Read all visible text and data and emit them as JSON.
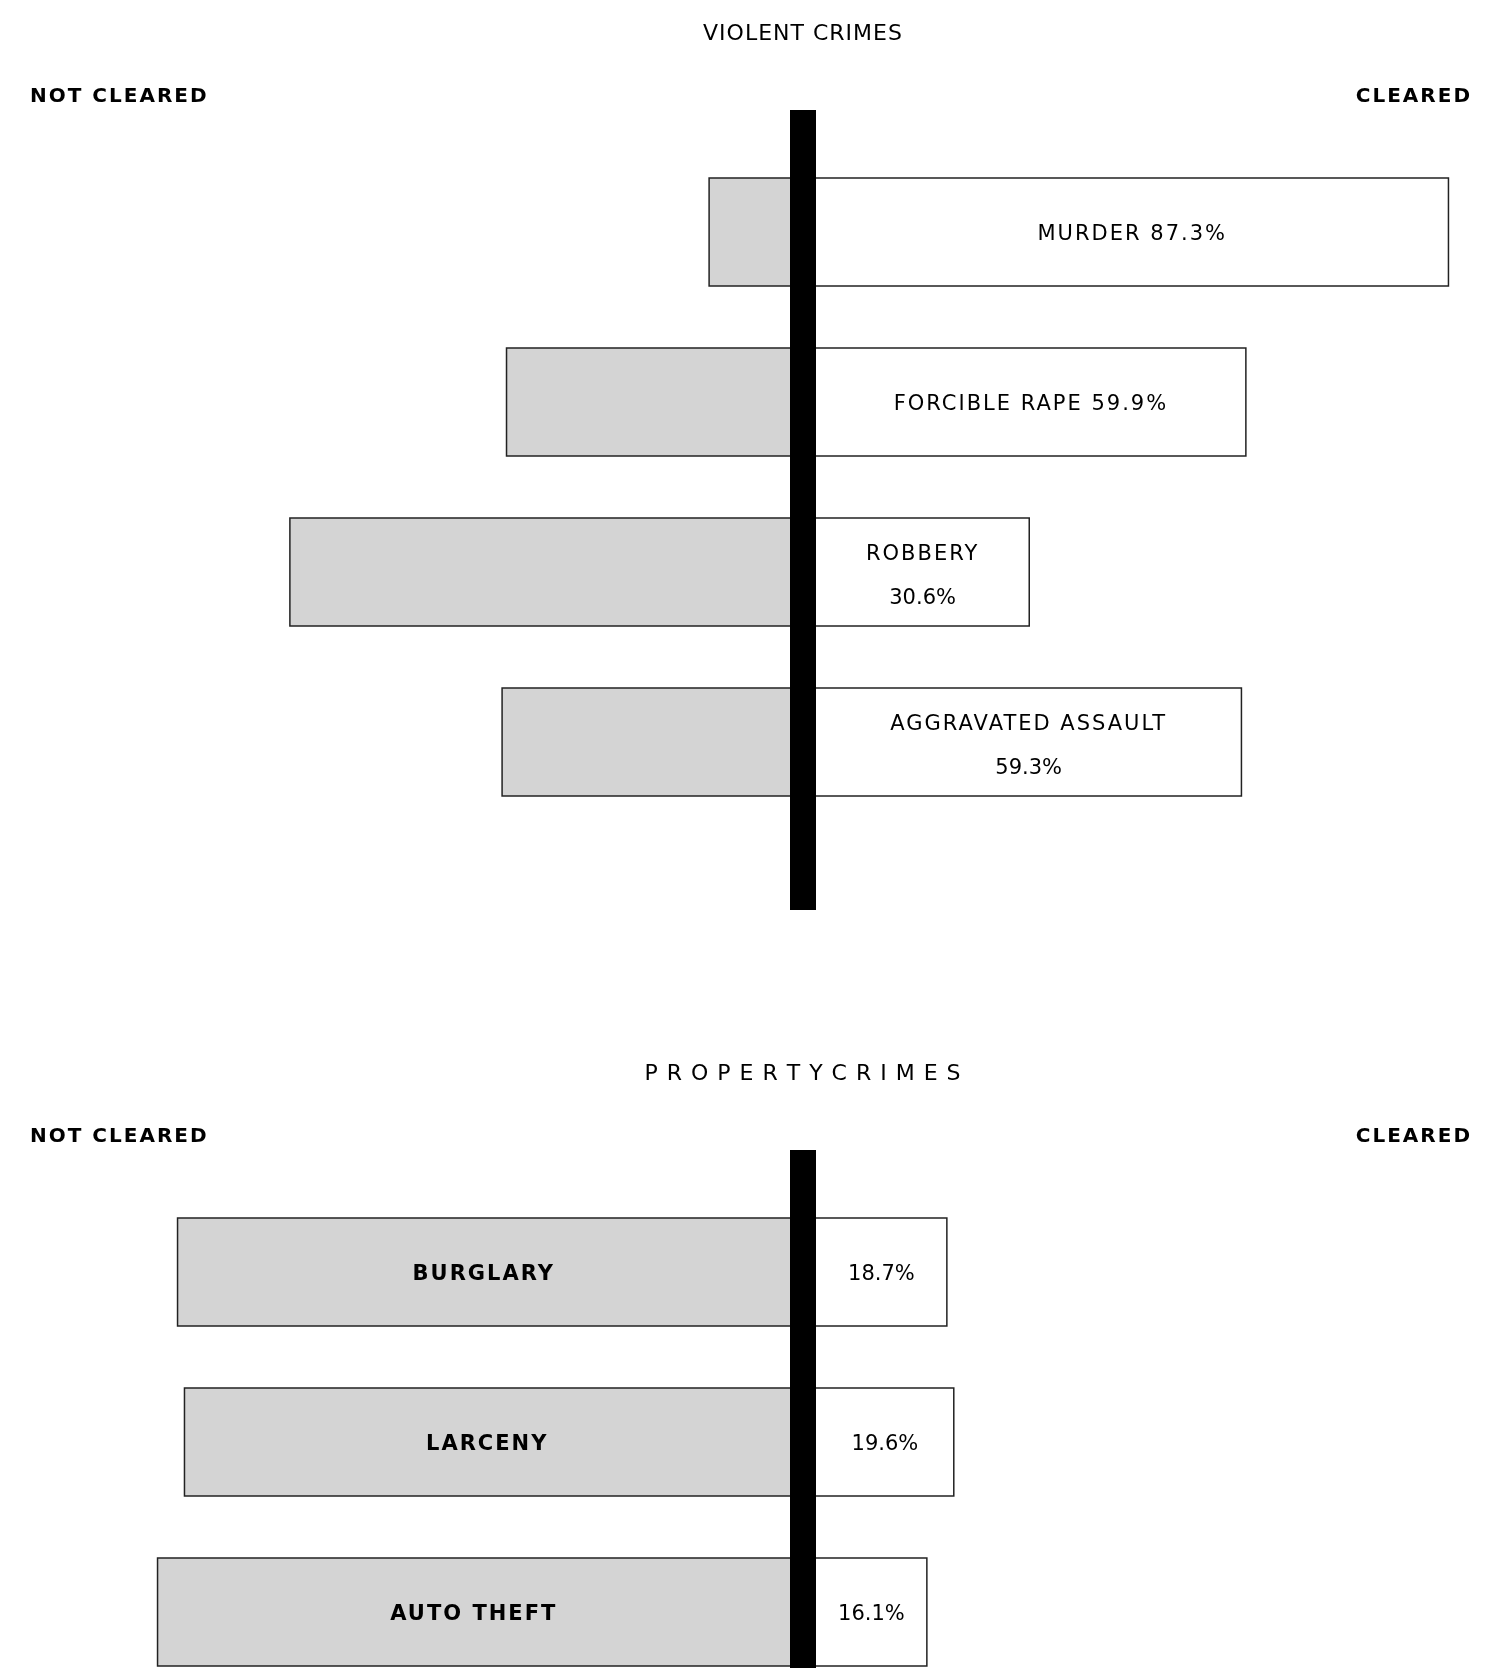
{
  "chart_data": [
    {
      "type": "bar",
      "title": "VIOLENT CRIMES",
      "orientation": "horizontal",
      "stacked": true,
      "annotations": [
        "NOT CLEARED",
        "CLEARED"
      ],
      "ref_lines": [
        {
          "axis": "x",
          "value": 0,
          "color": "#000000"
        }
      ],
      "categories": [
        "MURDER",
        "FORCIBLE RAPE",
        "ROBBERY",
        "AGGRAVATED ASSAULT"
      ],
      "series": [
        {
          "color": "#d4d4d4",
          "values": [
            -12.7,
            -40.1,
            -69.4,
            -40.7
          ]
        },
        {
          "color": "#ffffff",
          "values": [
            87.3,
            59.9,
            30.6,
            59.3
          ],
          "value_labels": [
            "87.3%",
            "59.9%",
            "30.6%",
            "59.3%"
          ]
        }
      ]
    },
    {
      "type": "bar",
      "title": "P R O P E R T Y   C R I M E S",
      "orientation": "horizontal",
      "stacked": true,
      "annotations": [
        "NOT CLEARED",
        "CLEARED"
      ],
      "ref_lines": [
        {
          "axis": "x",
          "value": 0,
          "color": "#000000"
        }
      ],
      "categories": [
        "BURGLARY",
        "LARCENY",
        "AUTO THEFT"
      ],
      "series": [
        {
          "color": "#d4d4d4",
          "values": [
            -81.3,
            -80.4,
            -83.9
          ]
        },
        {
          "color": "#ffffff",
          "values": [
            18.7,
            19.6,
            16.1
          ],
          "value_labels": [
            "18.7%",
            "19.6%",
            "16.1%"
          ]
        }
      ]
    }
  ]
}
